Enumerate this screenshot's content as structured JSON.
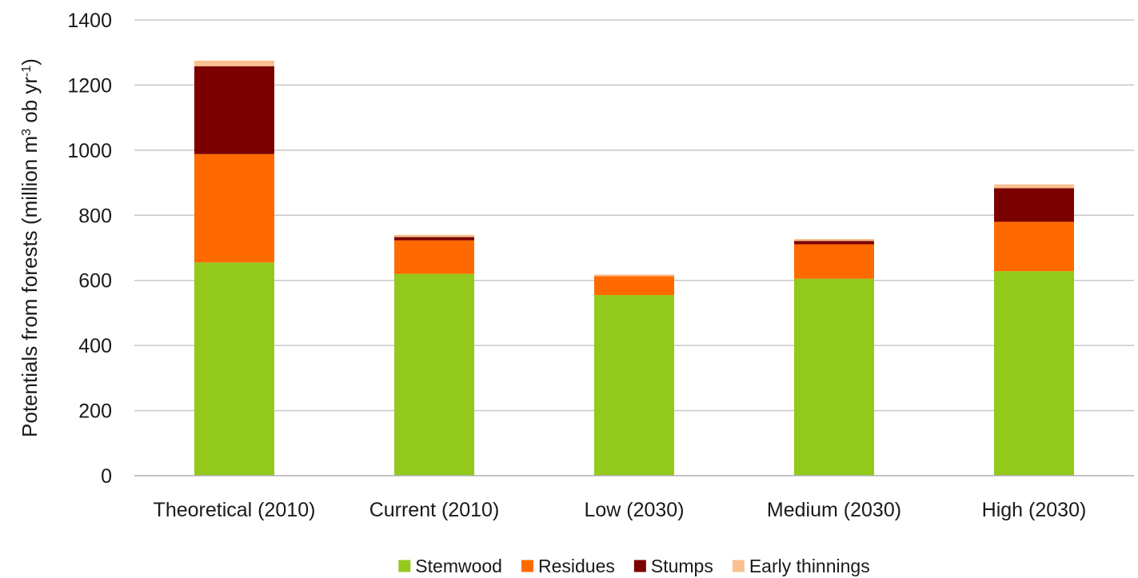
{
  "chart_data": {
    "type": "bar",
    "stacked": true,
    "categories": [
      "Theoretical (2010)",
      "Current (2010)",
      "Low (2030)",
      "Medium (2030)",
      "High (2030)"
    ],
    "series": [
      {
        "name": "Stemwood",
        "color": "#92c91b",
        "values": [
          655,
          620,
          555,
          605,
          628
        ]
      },
      {
        "name": "Residues",
        "color": "#ff6a00",
        "values": [
          333,
          103,
          58,
          106,
          152
        ]
      },
      {
        "name": "Stumps",
        "color": "#7b0000",
        "values": [
          270,
          10,
          0,
          10,
          103
        ]
      },
      {
        "name": "Early thinnings",
        "color": "#f9c090",
        "values": [
          17,
          7,
          5,
          6,
          12
        ]
      }
    ],
    "ylabel_main": "Potentials from forests (million m",
    "ylabel_sup1": "3",
    "ylabel_mid": " ob yr",
    "ylabel_sup2": "-1",
    "ylabel_end": ")",
    "ylim": [
      0,
      1400
    ],
    "yticks": [
      0,
      200,
      400,
      600,
      800,
      1000,
      1200,
      1400
    ],
    "grid": true,
    "legend_position": "bottom"
  }
}
